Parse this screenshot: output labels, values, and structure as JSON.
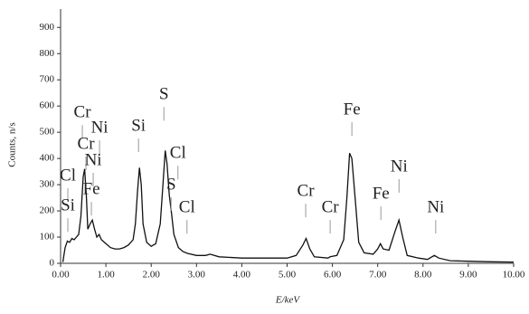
{
  "chart_data": {
    "type": "line",
    "ylabel": "Counts, n/s",
    "xlabel": "E/keV",
    "x": [
      0.05,
      0.1,
      0.15,
      0.2,
      0.25,
      0.3,
      0.35,
      0.4,
      0.45,
      0.5,
      0.53,
      0.57,
      0.6,
      0.65,
      0.7,
      0.75,
      0.8,
      0.85,
      0.9,
      1.0,
      1.1,
      1.2,
      1.3,
      1.4,
      1.5,
      1.6,
      1.65,
      1.7,
      1.74,
      1.78,
      1.82,
      1.9,
      2.0,
      2.1,
      2.2,
      2.26,
      2.31,
      2.35,
      2.4,
      2.45,
      2.5,
      2.6,
      2.7,
      2.8,
      3.0,
      3.2,
      3.3,
      3.5,
      4.0,
      4.5,
      5.0,
      5.2,
      5.35,
      5.42,
      5.5,
      5.6,
      5.9,
      5.95,
      6.1,
      6.25,
      6.32,
      6.38,
      6.43,
      6.5,
      6.58,
      6.7,
      6.9,
      7.0,
      7.06,
      7.12,
      7.25,
      7.38,
      7.47,
      7.55,
      7.65,
      7.9,
      8.1,
      8.25,
      8.35,
      8.6,
      9.0,
      9.5,
      10.0
    ],
    "series": [
      {
        "color": "#111111",
        "values": [
          5,
          60,
          85,
          80,
          95,
          90,
          100,
          110,
          180,
          330,
          360,
          250,
          130,
          150,
          165,
          130,
          100,
          110,
          90,
          75,
          60,
          55,
          55,
          60,
          70,
          90,
          150,
          280,
          365,
          300,
          150,
          80,
          65,
          75,
          150,
          300,
          430,
          380,
          260,
          190,
          110,
          60,
          45,
          38,
          30,
          30,
          35,
          25,
          20,
          20,
          20,
          30,
          70,
          95,
          55,
          25,
          20,
          25,
          30,
          90,
          250,
          420,
          400,
          250,
          80,
          40,
          35,
          55,
          75,
          55,
          50,
          120,
          165,
          100,
          30,
          20,
          15,
          30,
          20,
          10,
          8,
          6,
          5
        ]
      }
    ],
    "xlim": [
      0,
      10
    ],
    "ylim": [
      0,
      970
    ],
    "xticks": [
      {
        "value": 0,
        "label": "0.00"
      },
      {
        "value": 1,
        "label": "1.00"
      },
      {
        "value": 2,
        "label": "2.00"
      },
      {
        "value": 3,
        "label": "3.00"
      },
      {
        "value": 4,
        "label": "4.00"
      },
      {
        "value": 5,
        "label": "5.00"
      },
      {
        "value": 6,
        "label": "6.00"
      },
      {
        "value": 7,
        "label": "7.00"
      },
      {
        "value": 8,
        "label": "8.00"
      },
      {
        "value": 9,
        "label": "9.00"
      },
      {
        "value": 10,
        "label": "10.00"
      }
    ],
    "yticks": [
      0,
      100,
      200,
      300,
      400,
      500,
      600,
      700,
      800,
      900
    ],
    "annotations": [
      {
        "text": "Cr",
        "x": 0.48,
        "y": 572
      },
      {
        "text": "Ni",
        "x": 0.86,
        "y": 514
      },
      {
        "text": "Cr",
        "x": 0.56,
        "y": 452
      },
      {
        "text": "Ni",
        "x": 0.72,
        "y": 390
      },
      {
        "text": "Cl",
        "x": 0.16,
        "y": 331
      },
      {
        "text": "Si",
        "x": 0.16,
        "y": 217
      },
      {
        "text": "Fe",
        "x": 0.68,
        "y": 279
      },
      {
        "text": "Si",
        "x": 1.72,
        "y": 521
      },
      {
        "text": "S",
        "x": 2.28,
        "y": 641
      },
      {
        "text": "Cl",
        "x": 2.59,
        "y": 417
      },
      {
        "text": "S",
        "x": 2.44,
        "y": 297
      },
      {
        "text": "Cl",
        "x": 2.79,
        "y": 210
      },
      {
        "text": "Cr",
        "x": 5.41,
        "y": 272
      },
      {
        "text": "Cr",
        "x": 5.95,
        "y": 210
      },
      {
        "text": "Fe",
        "x": 6.43,
        "y": 583
      },
      {
        "text": "Fe",
        "x": 7.07,
        "y": 262
      },
      {
        "text": "Ni",
        "x": 7.47,
        "y": 366
      },
      {
        "text": "Ni",
        "x": 8.28,
        "y": 210
      }
    ]
  }
}
